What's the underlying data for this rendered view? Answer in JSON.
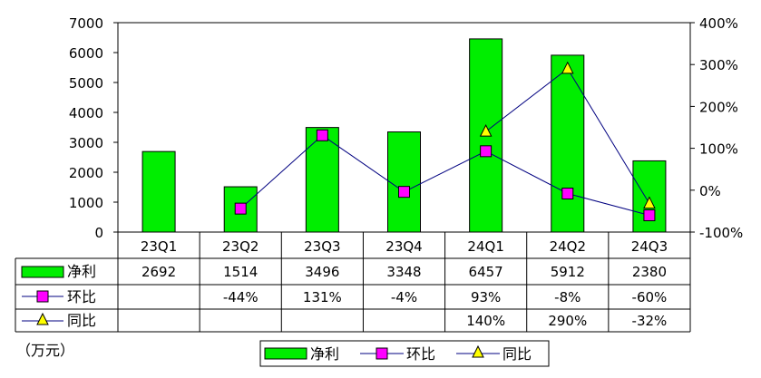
{
  "chart_data": {
    "type": "bar",
    "categories": [
      "23Q1",
      "23Q2",
      "23Q3",
      "23Q4",
      "24Q1",
      "24Q2",
      "24Q3"
    ],
    "ylim": [
      0,
      7000
    ],
    "y_ticks": [
      0,
      1000,
      2000,
      3000,
      4000,
      5000,
      6000,
      7000
    ],
    "y2lim": [
      -100,
      400
    ],
    "y2_ticks": [
      "-100%",
      "0%",
      "100%",
      "200%",
      "300%",
      "400%"
    ],
    "unit": "（万元）",
    "grid": false,
    "legend_placement": "bottom",
    "series": [
      {
        "name": "净利",
        "type": "bar",
        "axis": "left",
        "color": "#00ee00",
        "values": [
          2692,
          1514,
          3496,
          3348,
          6457,
          5912,
          2380
        ],
        "labels": [
          "2692",
          "1514",
          "3496",
          "3348",
          "6457",
          "5912",
          "2380"
        ]
      },
      {
        "name": "环比",
        "type": "line",
        "axis": "right",
        "color": "#000080",
        "marker": "square",
        "marker_color": "#ff00ff",
        "values": [
          null,
          -44,
          131,
          -4,
          93,
          -8,
          -60
        ],
        "labels": [
          "",
          "-44%",
          "131%",
          "-4%",
          "93%",
          "-8%",
          "-60%"
        ]
      },
      {
        "name": "同比",
        "type": "line",
        "axis": "right",
        "color": "#000080",
        "marker": "triangle",
        "marker_color": "#ffff00",
        "values": [
          null,
          null,
          null,
          null,
          140,
          290,
          -32
        ],
        "labels": [
          "",
          "",
          "",
          "",
          "140%",
          "290%",
          "-32%"
        ]
      }
    ]
  }
}
